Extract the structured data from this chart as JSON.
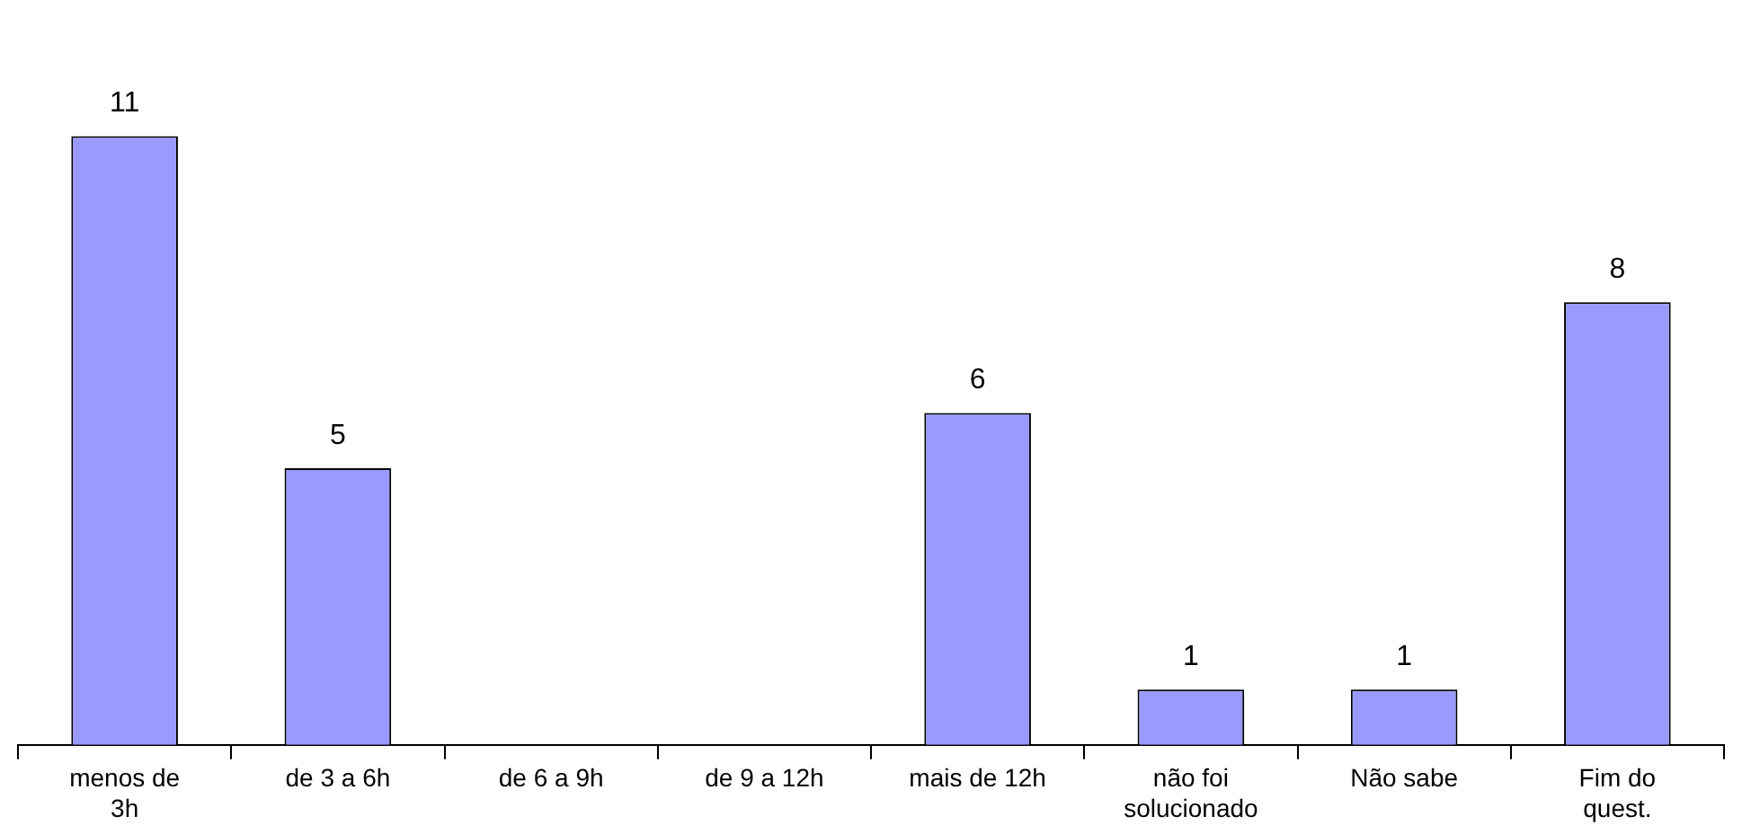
{
  "chart_data": {
    "type": "bar",
    "categories": [
      "menos de 3h",
      "de 3 a 6h",
      "de 6 a 9h",
      "de 9 a 12h",
      "mais de 12h",
      "não foi solucionado",
      "Não sabe",
      "Fim do quest."
    ],
    "values": [
      11,
      5,
      0,
      0,
      6,
      1,
      1,
      8
    ],
    "value_labels": [
      "11",
      "5",
      null,
      null,
      "6",
      "1",
      "1",
      "8"
    ],
    "color": "#9999ff",
    "grid": false,
    "legend": false
  }
}
